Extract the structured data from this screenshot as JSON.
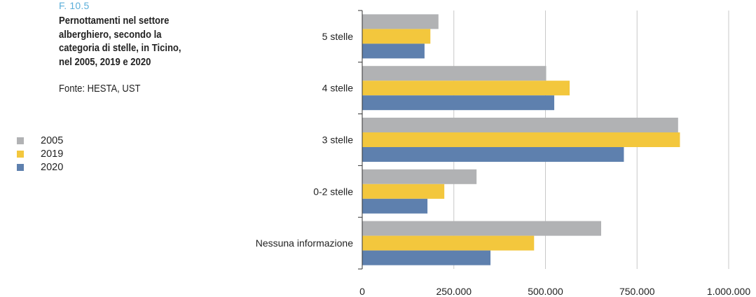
{
  "figure": {
    "label": "F. 10.5",
    "title": "Pernottamenti nel settore alberghiero, secondo la categoria di stelle, in Ticino, nel 2005, 2019 e 2020",
    "source": "Fonte: HESTA, UST"
  },
  "chart_data": {
    "type": "bar",
    "orientation": "horizontal",
    "categories": [
      "5 stelle",
      "4 stelle",
      "3 stelle",
      "0-2 stelle",
      "Nessuna informazione"
    ],
    "series": [
      {
        "name": "2005",
        "color": "#b1b2b4",
        "values": [
          208000,
          502000,
          862000,
          312000,
          652000
        ]
      },
      {
        "name": "2019",
        "color": "#f3c73d",
        "values": [
          186000,
          566000,
          867000,
          224000,
          469000
        ]
      },
      {
        "name": "2020",
        "color": "#5e80ae",
        "values": [
          170000,
          524000,
          714000,
          178000,
          350000
        ]
      }
    ],
    "xlim": [
      0,
      1000000
    ],
    "xticks": [
      0,
      250000,
      500000,
      750000,
      1000000
    ],
    "xtick_labels": [
      "0",
      "250.000",
      "500.000",
      "750.000",
      "1.000.000"
    ],
    "grid": true,
    "legend_position": "left"
  }
}
